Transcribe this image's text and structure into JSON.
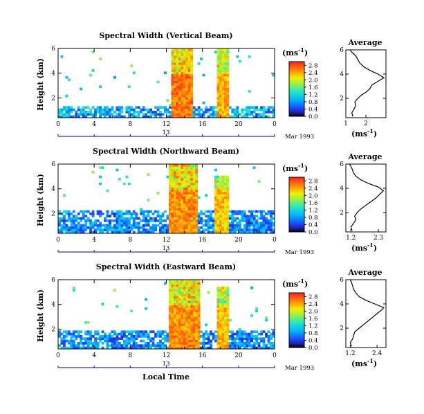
{
  "figure": {
    "x_axis_label": "Local Time",
    "date_label": "Mar 1993",
    "day_label": "13"
  },
  "colorbar_unit": "(ms",
  "colorbar_unit_exp": "-1",
  "colorbar_unit_close": ")",
  "chart_data": [
    {
      "type": "heatmap",
      "title": "Spectral Width (Vertical Beam)",
      "ylabel": "Height (km)",
      "xlabel": "Local Time",
      "x_ticks": [
        "0",
        "4",
        "8",
        "12",
        "16",
        "20",
        "0"
      ],
      "y_ticks": [
        "2",
        "4",
        "6"
      ],
      "xlim": [
        0,
        24
      ],
      "ylim": [
        0.4,
        6.0
      ],
      "colorbar_ticks": [
        "0.0",
        "0.4",
        "0.8",
        "1.2",
        "1.6",
        "2.0",
        "2.4",
        "2.8"
      ],
      "clim": [
        0.0,
        3.0
      ],
      "features": [
        {
          "kind": "low_layer",
          "x_range": [
            0,
            24
          ],
          "height_range": [
            0.4,
            1.4
          ],
          "value": 1.2
        },
        {
          "kind": "convective_column",
          "x_range": [
            12.5,
            15.0
          ],
          "height_range": [
            0.4,
            6.0
          ],
          "value": 2.9
        },
        {
          "kind": "convective_column",
          "x_range": [
            17.6,
            18.8
          ],
          "height_range": [
            0.4,
            6.0
          ],
          "value": 2.7
        }
      ]
    },
    {
      "type": "line",
      "title": "Average",
      "xlabel": "(ms",
      "xlabel_exp": "-1",
      "xlabel_close": ")",
      "x_ticks": [
        "1",
        "2"
      ],
      "y_ticks": [
        "2",
        "4",
        "6"
      ],
      "xlim": [
        1.0,
        3.0
      ],
      "ylim": [
        0.4,
        6.0
      ],
      "x": [
        1.35,
        1.3,
        1.4,
        1.5,
        1.45,
        1.6,
        1.8,
        2.0,
        2.2,
        2.3,
        2.6,
        2.9,
        2.6,
        2.2,
        1.9,
        1.7,
        1.6,
        1.5,
        1.3,
        1.2
      ],
      "y": [
        0.5,
        0.8,
        1.1,
        1.4,
        1.7,
        2.0,
        2.3,
        2.5,
        2.8,
        3.1,
        3.4,
        3.7,
        4.0,
        4.3,
        4.6,
        4.9,
        5.2,
        5.5,
        5.8,
        6.0
      ]
    },
    {
      "type": "heatmap",
      "title": "Spectral Width (Northward Beam)",
      "ylabel": "Height (km)",
      "xlabel": "Local Time",
      "x_ticks": [
        "0",
        "4",
        "8",
        "12",
        "16",
        "20",
        "0"
      ],
      "y_ticks": [
        "2",
        "4",
        "6"
      ],
      "xlim": [
        0,
        24
      ],
      "ylim": [
        0.4,
        6.0
      ],
      "colorbar_ticks": [
        "0.0",
        "0.4",
        "0.8",
        "1.2",
        "1.6",
        "2.0",
        "2.4",
        "2.8"
      ],
      "clim": [
        0.0,
        3.0
      ],
      "features": [
        {
          "kind": "low_layer",
          "x_range": [
            0,
            24
          ],
          "height_range": [
            0.4,
            2.2
          ],
          "value": 1.0
        },
        {
          "kind": "convective_column",
          "x_range": [
            12.4,
            15.6
          ],
          "height_range": [
            0.4,
            6.0
          ],
          "value": 2.8
        },
        {
          "kind": "convective_column",
          "x_range": [
            17.4,
            19.0
          ],
          "height_range": [
            0.4,
            5.0
          ],
          "value": 2.6
        }
      ]
    },
    {
      "type": "line",
      "title": "Average",
      "xlabel": "(ms",
      "xlabel_exp": "-1",
      "xlabel_close": ")",
      "x_ticks": [
        "1.2",
        "2.3"
      ],
      "y_ticks": [
        "2",
        "4",
        "6"
      ],
      "xlim": [
        1.0,
        2.6
      ],
      "ylim": [
        0.4,
        6.0
      ],
      "x": [
        1.25,
        1.2,
        1.3,
        1.4,
        1.35,
        1.45,
        1.6,
        1.8,
        2.0,
        2.2,
        2.35,
        2.5,
        2.3,
        1.9,
        1.6,
        1.4,
        1.3,
        1.25,
        1.2,
        1.15
      ],
      "y": [
        0.5,
        0.8,
        1.1,
        1.4,
        1.7,
        2.0,
        2.3,
        2.6,
        2.9,
        3.2,
        3.5,
        3.8,
        4.1,
        4.4,
        4.7,
        5.0,
        5.3,
        5.6,
        5.8,
        6.0
      ]
    },
    {
      "type": "heatmap",
      "title": "Spectral Width (Eastward Beam)",
      "ylabel": "Height (km)",
      "xlabel": "Local Time",
      "x_ticks": [
        "0",
        "4",
        "8",
        "12",
        "16",
        "20",
        "0"
      ],
      "y_ticks": [
        "2",
        "4",
        "6"
      ],
      "xlim": [
        0,
        24
      ],
      "ylim": [
        0.4,
        6.0
      ],
      "colorbar_ticks": [
        "0.0",
        "0.4",
        "0.8",
        "1.2",
        "1.6",
        "2.0",
        "2.4",
        "2.8"
      ],
      "clim": [
        0.0,
        3.0
      ],
      "features": [
        {
          "kind": "low_layer",
          "x_range": [
            0,
            24
          ],
          "height_range": [
            0.4,
            1.9
          ],
          "value": 1.0
        },
        {
          "kind": "convective_column",
          "x_range": [
            12.4,
            15.8
          ],
          "height_range": [
            0.4,
            6.0
          ],
          "value": 2.8
        },
        {
          "kind": "convective_column",
          "x_range": [
            17.6,
            18.8
          ],
          "height_range": [
            0.4,
            5.5
          ],
          "value": 2.6
        }
      ]
    },
    {
      "type": "line",
      "title": "Average",
      "xlabel": "(ms",
      "xlabel_exp": "-1",
      "xlabel_close": ")",
      "x_ticks": [
        "1.2",
        "2.4"
      ],
      "y_ticks": [
        "2",
        "4",
        "6"
      ],
      "xlim": [
        1.0,
        2.8
      ],
      "ylim": [
        0.4,
        6.0
      ],
      "x": [
        1.25,
        1.2,
        1.3,
        1.35,
        1.4,
        1.6,
        1.8,
        2.0,
        2.2,
        2.4,
        2.6,
        2.7,
        2.3,
        1.9,
        1.6,
        1.45,
        1.35,
        1.3,
        1.25,
        1.2
      ],
      "y": [
        0.5,
        0.8,
        1.1,
        1.4,
        1.7,
        2.0,
        2.3,
        2.6,
        2.9,
        3.2,
        3.5,
        3.7,
        4.0,
        4.3,
        4.6,
        4.9,
        5.2,
        5.5,
        5.8,
        6.0
      ]
    }
  ]
}
